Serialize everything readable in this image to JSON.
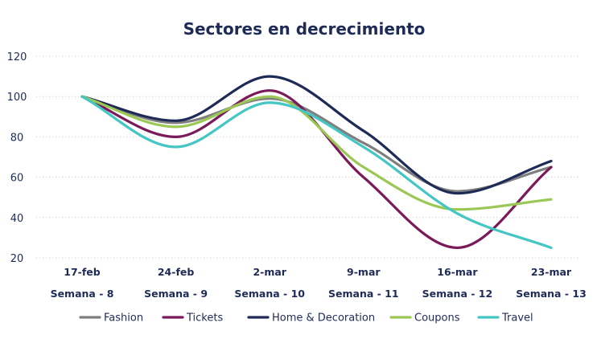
{
  "chart_data": {
    "type": "line",
    "title": "Sectores en decrecimiento",
    "categories": [
      "17-feb",
      "24-feb",
      "2-mar",
      "9-mar",
      "16-mar",
      "23-mar"
    ],
    "weeks": [
      "Semana - 8",
      "Semana - 9",
      "Semana - 10",
      "Semana - 11",
      "Semana - 12",
      "Semana - 13"
    ],
    "ylim": [
      20,
      120
    ],
    "yticks": [
      20,
      40,
      60,
      80,
      100,
      120
    ],
    "grid": true,
    "legend_position": "bottom",
    "series": [
      {
        "name": "Fashion",
        "color": "#7f7f7f",
        "values": [
          100,
          87,
          99,
          77,
          53,
          65
        ]
      },
      {
        "name": "Tickets",
        "color": "#7a1a5a",
        "values": [
          100,
          80,
          103,
          60,
          25,
          65
        ]
      },
      {
        "name": "Home & Decoration",
        "color": "#1e2b57",
        "values": [
          100,
          88,
          110,
          83,
          52,
          68
        ]
      },
      {
        "name": "Coupons",
        "color": "#9bc855",
        "values": [
          100,
          85,
          100,
          65,
          44,
          49
        ]
      },
      {
        "name": "Travel",
        "color": "#44c6c4",
        "values": [
          100,
          75,
          97,
          75,
          42,
          25
        ]
      }
    ]
  }
}
